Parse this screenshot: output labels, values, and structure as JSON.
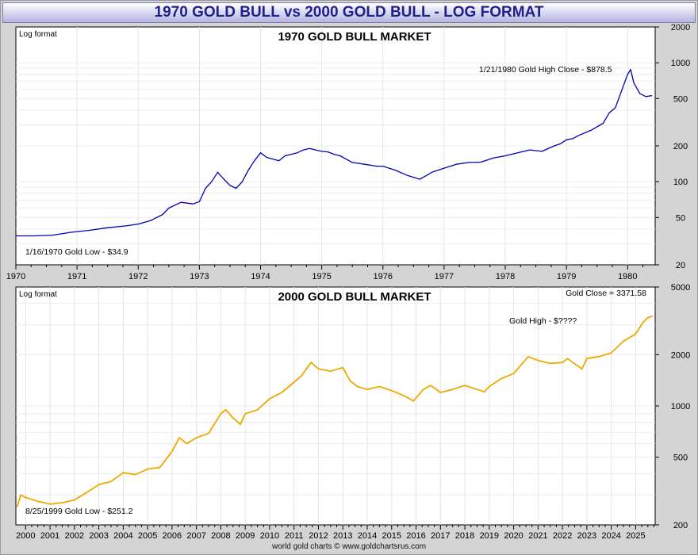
{
  "header": {
    "title": "1970 GOLD BULL vs 2000 GOLD BULL - LOG FORMAT"
  },
  "footer": {
    "credit": "world gold charts © www.goldchartsrus.com"
  },
  "chart_data": [
    {
      "type": "line",
      "title": "1970 GOLD BULL MARKET",
      "corner_label": "Log format",
      "y_scale": "log",
      "ylim": [
        20,
        2000
      ],
      "y_ticks": [
        20,
        50,
        100,
        200,
        500,
        1000,
        2000
      ],
      "xlim": [
        1970,
        1980.45
      ],
      "x_ticks": [
        "1970",
        "1971",
        "1972",
        "1973",
        "1974",
        "1975",
        "1976",
        "1977",
        "1978",
        "1979",
        "1980"
      ],
      "grid": true,
      "series": [
        {
          "color": "#0000b4",
          "x": [
            1970.0,
            1970.3,
            1970.6,
            1970.9,
            1971.2,
            1971.5,
            1971.8,
            1972.0,
            1972.2,
            1972.4,
            1972.5,
            1972.7,
            1972.9,
            1973.0,
            1973.1,
            1973.2,
            1973.3,
            1973.4,
            1973.5,
            1973.6,
            1973.7,
            1973.8,
            1973.9,
            1974.0,
            1974.1,
            1974.2,
            1974.3,
            1974.4,
            1974.5,
            1974.6,
            1974.7,
            1974.8,
            1974.9,
            1975.0,
            1975.1,
            1975.2,
            1975.3,
            1975.5,
            1975.7,
            1975.9,
            1976.0,
            1976.2,
            1976.4,
            1976.6,
            1976.7,
            1976.8,
            1977.0,
            1977.2,
            1977.4,
            1977.6,
            1977.8,
            1978.0,
            1978.2,
            1978.4,
            1978.6,
            1978.8,
            1978.9,
            1979.0,
            1979.1,
            1979.2,
            1979.4,
            1979.6,
            1979.7,
            1979.8,
            1979.9,
            1980.0,
            1980.05,
            1980.1,
            1980.2,
            1980.3,
            1980.4
          ],
          "y": [
            35,
            35,
            35.5,
            37.5,
            39,
            41,
            42.5,
            44,
            47,
            53,
            60,
            67,
            65,
            68,
            88,
            100,
            120,
            105,
            93,
            88,
            100,
            125,
            150,
            175,
            160,
            155,
            150,
            165,
            170,
            175,
            185,
            190,
            185,
            180,
            178,
            170,
            165,
            145,
            140,
            135,
            135,
            125,
            113,
            105,
            112,
            120,
            130,
            140,
            145,
            146,
            158,
            165,
            175,
            185,
            180,
            200,
            208,
            225,
            230,
            245,
            270,
            310,
            380,
            420,
            580,
            800,
            878.5,
            680,
            550,
            520,
            530
          ]
        }
      ],
      "annotations": [
        "1/21/1980 Gold High Close - $878.5",
        "1/16/1970 Gold Low - $34.9"
      ]
    },
    {
      "type": "line",
      "title": "2000 GOLD BULL MARKET",
      "corner_label": "Log format",
      "y_scale": "log",
      "ylim": [
        200,
        5000
      ],
      "y_ticks": [
        200,
        500,
        1000,
        2000,
        5000
      ],
      "xlim": [
        1999.6,
        2025.8
      ],
      "x_ticks": [
        "2000",
        "2001",
        "2002",
        "2003",
        "2004",
        "2005",
        "2006",
        "2007",
        "2008",
        "2009",
        "2010",
        "2011",
        "2012",
        "2013",
        "2014",
        "2015",
        "2016",
        "2017",
        "2018",
        "2019",
        "2020",
        "2021",
        "2022",
        "2023",
        "2024",
        "2025"
      ],
      "grid": true,
      "series": [
        {
          "color": "#f0a800",
          "x": [
            1999.65,
            1999.8,
            2000.0,
            2000.5,
            2001.0,
            2001.5,
            2002.0,
            2002.5,
            2003.0,
            2003.5,
            2004.0,
            2004.5,
            2005.0,
            2005.5,
            2006.0,
            2006.3,
            2006.6,
            2007.0,
            2007.5,
            2008.0,
            2008.2,
            2008.5,
            2008.8,
            2009.0,
            2009.5,
            2010.0,
            2010.5,
            2011.0,
            2011.3,
            2011.7,
            2012.0,
            2012.5,
            2013.0,
            2013.3,
            2013.6,
            2014.0,
            2014.5,
            2015.0,
            2015.5,
            2015.9,
            2016.3,
            2016.6,
            2017.0,
            2017.5,
            2018.0,
            2018.5,
            2018.8,
            2019.0,
            2019.5,
            2020.0,
            2020.6,
            2021.0,
            2021.5,
            2022.0,
            2022.2,
            2022.8,
            2023.0,
            2023.5,
            2024.0,
            2024.5,
            2025.0,
            2025.3,
            2025.5,
            2025.7
          ],
          "y": [
            255,
            300,
            290,
            275,
            265,
            270,
            280,
            310,
            345,
            360,
            405,
            395,
            425,
            435,
            540,
            650,
            600,
            650,
            690,
            900,
            950,
            850,
            780,
            900,
            950,
            1100,
            1200,
            1380,
            1500,
            1800,
            1650,
            1600,
            1680,
            1400,
            1300,
            1250,
            1300,
            1230,
            1150,
            1070,
            1250,
            1320,
            1200,
            1250,
            1320,
            1250,
            1210,
            1300,
            1450,
            1550,
            1950,
            1850,
            1780,
            1800,
            1900,
            1650,
            1900,
            1950,
            2050,
            2400,
            2650,
            3100,
            3300,
            3371.58
          ]
        }
      ],
      "annotations": [
        "Gold Close = 3371.58",
        "Gold High - $????",
        "8/25/1999 Gold Low - $251.2"
      ]
    }
  ]
}
